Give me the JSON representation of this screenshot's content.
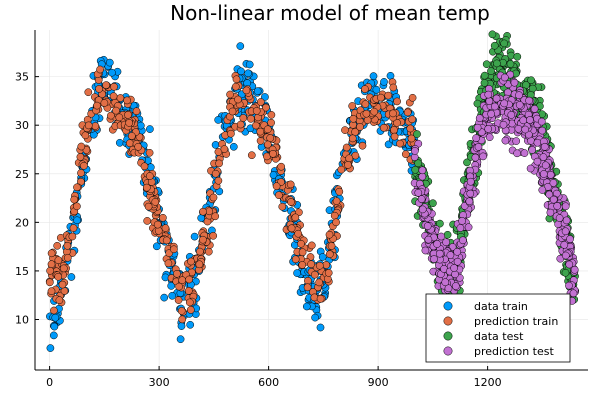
{
  "chart_data": {
    "type": "scatter",
    "title": "Non-linear model of mean temp",
    "xlabel": "",
    "ylabel": "",
    "xlim": [
      -40,
      1475
    ],
    "ylim": [
      4.8,
      39.8
    ],
    "x_ticks": [
      0,
      300,
      600,
      900,
      1200
    ],
    "y_ticks": [
      10,
      15,
      20,
      25,
      30,
      35
    ],
    "grid": true,
    "legend_position": "bottom-right",
    "series": [
      {
        "name": "data train",
        "color": "#009AFA",
        "x_range": [
          0,
          1000
        ],
        "profile": [
          [
            0,
            8.5
          ],
          [
            40,
            14.5
          ],
          [
            80,
            22
          ],
          [
            110,
            29
          ],
          [
            140,
            33.5
          ],
          [
            160,
            34.5
          ],
          [
            200,
            31
          ],
          [
            240,
            29.5
          ],
          [
            280,
            24
          ],
          [
            320,
            17
          ],
          [
            360,
            12.5
          ],
          [
            400,
            14
          ],
          [
            430,
            20
          ],
          [
            470,
            28
          ],
          [
            510,
            33
          ],
          [
            540,
            33.5
          ],
          [
            580,
            31
          ],
          [
            610,
            28
          ],
          [
            640,
            22
          ],
          [
            680,
            17
          ],
          [
            720,
            12
          ],
          [
            745,
            12.5
          ],
          [
            760,
            16
          ],
          [
            800,
            25
          ],
          [
            840,
            30
          ],
          [
            880,
            33
          ],
          [
            920,
            32
          ],
          [
            960,
            30.5
          ],
          [
            1000,
            29
          ]
        ],
        "spread": 3.0
      },
      {
        "name": "prediction train",
        "color": "#E26F46",
        "x_range": [
          0,
          1000
        ],
        "profile": [
          [
            0,
            14
          ],
          [
            40,
            15
          ],
          [
            80,
            25
          ],
          [
            110,
            30
          ],
          [
            140,
            33
          ],
          [
            170,
            32
          ],
          [
            200,
            31
          ],
          [
            240,
            29
          ],
          [
            280,
            23
          ],
          [
            320,
            18
          ],
          [
            360,
            13
          ],
          [
            400,
            14
          ],
          [
            430,
            19
          ],
          [
            470,
            27
          ],
          [
            500,
            32
          ],
          [
            540,
            32.5
          ],
          [
            580,
            30
          ],
          [
            610,
            28
          ],
          [
            640,
            23
          ],
          [
            680,
            19
          ],
          [
            720,
            14
          ],
          [
            745,
            13
          ],
          [
            760,
            15
          ],
          [
            800,
            24
          ],
          [
            840,
            30
          ],
          [
            880,
            32.5
          ],
          [
            920,
            32
          ],
          [
            960,
            30.5
          ],
          [
            1000,
            29.5
          ]
        ],
        "spread": 2.4
      },
      {
        "name": "data test",
        "color": "#3DA44D",
        "x_range": [
          1000,
          1440
        ],
        "profile": [
          [
            1000,
            26
          ],
          [
            1040,
            20
          ],
          [
            1080,
            15
          ],
          [
            1120,
            17
          ],
          [
            1160,
            27
          ],
          [
            1200,
            34
          ],
          [
            1240,
            36
          ],
          [
            1290,
            33
          ],
          [
            1330,
            31
          ],
          [
            1360,
            27
          ],
          [
            1400,
            20
          ],
          [
            1440,
            13
          ]
        ],
        "spread": 3.0
      },
      {
        "name": "prediction test",
        "color": "#C271D2",
        "x_range": [
          1000,
          1440
        ],
        "profile": [
          [
            1000,
            25
          ],
          [
            1040,
            19
          ],
          [
            1080,
            15
          ],
          [
            1120,
            16
          ],
          [
            1160,
            26
          ],
          [
            1200,
            31
          ],
          [
            1240,
            32
          ],
          [
            1290,
            31
          ],
          [
            1330,
            29
          ],
          [
            1360,
            26
          ],
          [
            1400,
            20
          ],
          [
            1440,
            14
          ]
        ],
        "spread": 2.5
      }
    ],
    "points_per_series": 620
  }
}
